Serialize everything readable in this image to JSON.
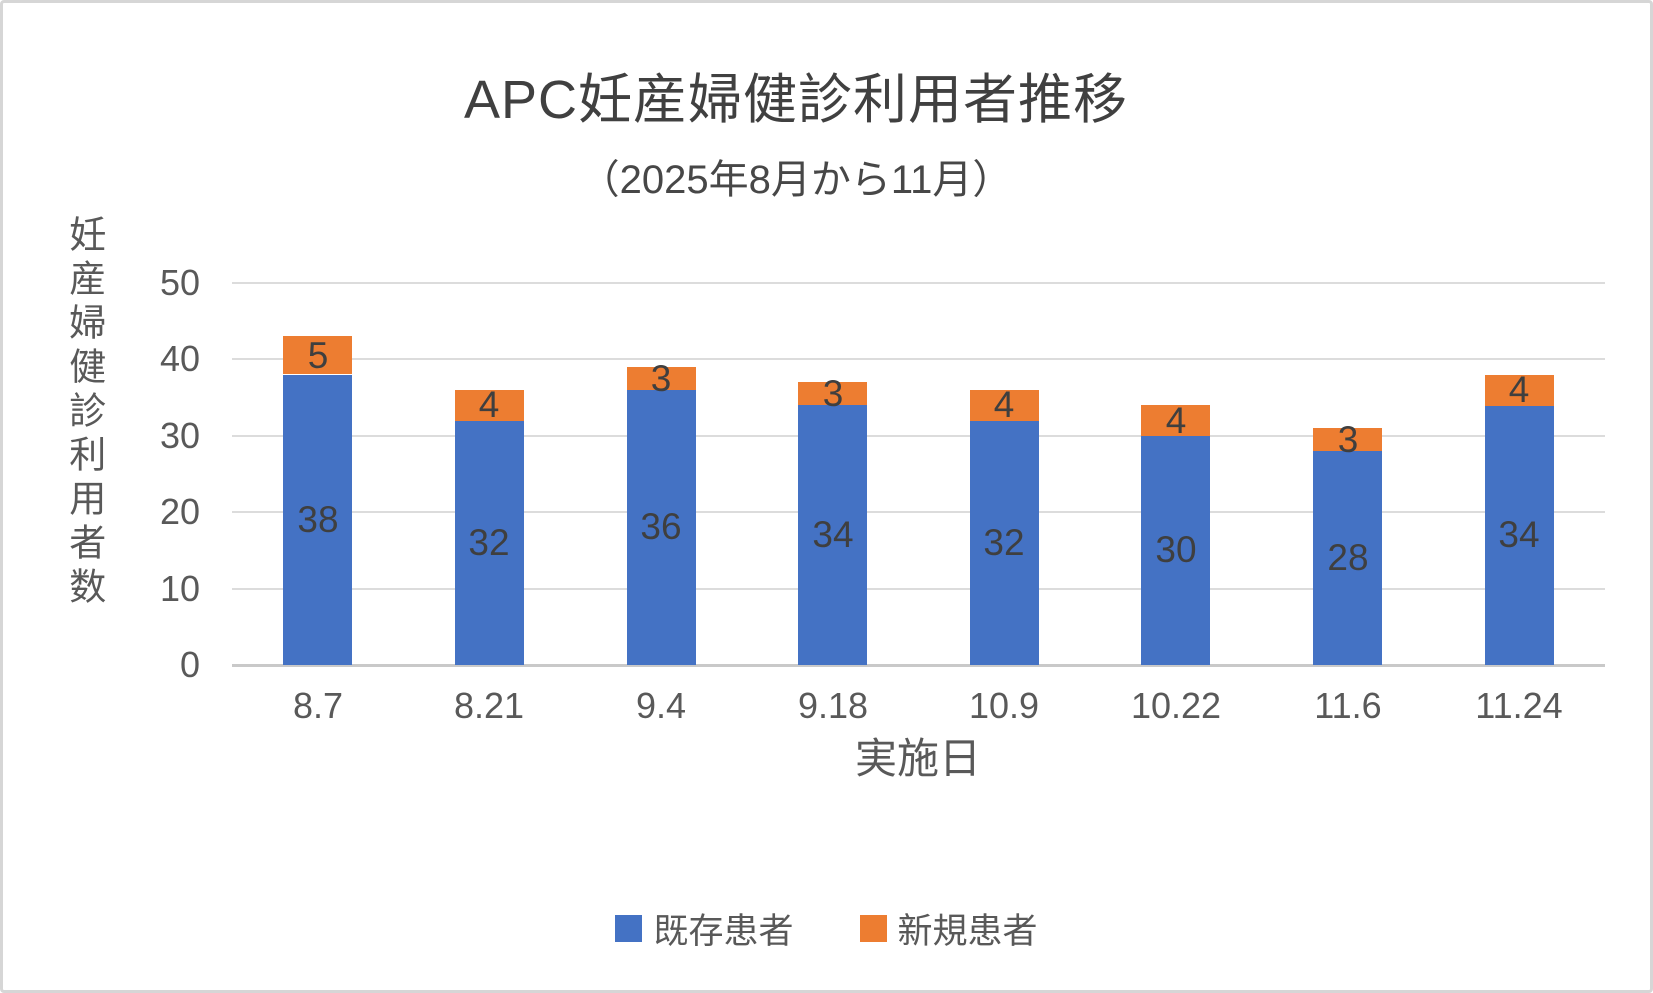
{
  "chart_data": {
    "type": "bar",
    "stacked": true,
    "title": "APC妊産婦健診利用者推移",
    "subtitle": "（2025年8月から11月）",
    "xlabel": "実施日",
    "ylabel": "妊産婦健診利用者数",
    "categories": [
      "8.7",
      "8.21",
      "9.4",
      "9.18",
      "10.9",
      "10.22",
      "11.6",
      "11.24"
    ],
    "series": [
      {
        "name": "既存患者",
        "color": "#4472C4",
        "values": [
          38,
          32,
          36,
          34,
          32,
          30,
          28,
          34
        ]
      },
      {
        "name": "新規患者",
        "color": "#ED7D31",
        "values": [
          5,
          4,
          3,
          3,
          4,
          4,
          3,
          4
        ]
      }
    ],
    "totals": [
      43,
      36,
      39,
      37,
      36,
      34,
      31,
      38
    ],
    "ylim": [
      0,
      50
    ],
    "yticks": [
      0,
      10,
      20,
      30,
      40,
      50
    ],
    "grid": true,
    "data_labels": true,
    "legend_position": "bottom",
    "colors": {
      "existing_patients": "#4472C4",
      "new_patients": "#ED7D31",
      "title_text": "#404040",
      "axis_text": "#595959",
      "gridline": "#dcdcdc"
    }
  }
}
